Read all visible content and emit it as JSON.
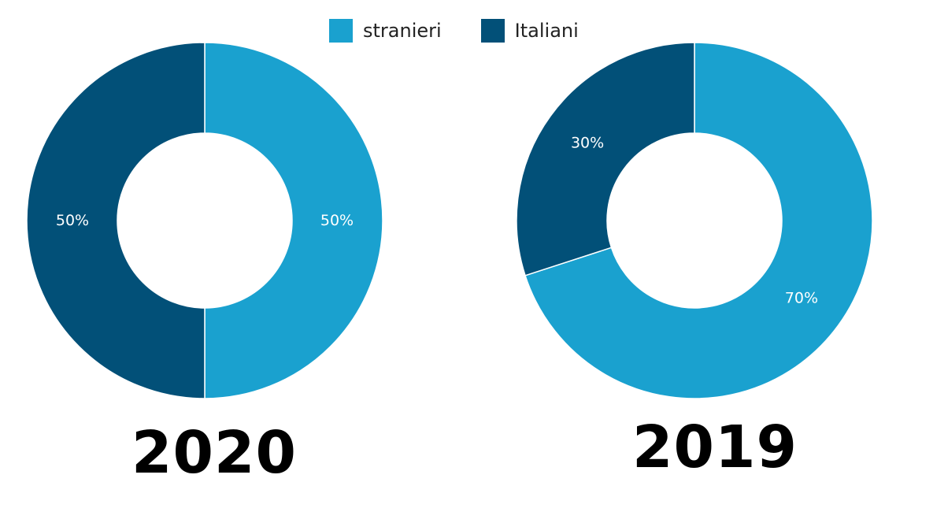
{
  "legend": {
    "items": [
      {
        "label": "stranieri",
        "color": "#1aa1cf"
      },
      {
        "label": "Italiani",
        "color": "#025078"
      }
    ]
  },
  "chart_data": [
    {
      "type": "pie",
      "variant": "donut",
      "title": "2020",
      "categories": [
        "stranieri",
        "Italiani"
      ],
      "values": [
        50,
        50
      ],
      "labels": [
        "50%",
        "50%"
      ],
      "colors": [
        "#1aa1cf",
        "#025078"
      ],
      "legend_placement": "top-center"
    },
    {
      "type": "pie",
      "variant": "donut",
      "title": "2019",
      "categories": [
        "stranieri",
        "Italiani"
      ],
      "values": [
        70,
        30
      ],
      "labels": [
        "70%",
        "30%"
      ],
      "colors": [
        "#1aa1cf",
        "#025078"
      ],
      "legend_placement": "top-center"
    }
  ]
}
